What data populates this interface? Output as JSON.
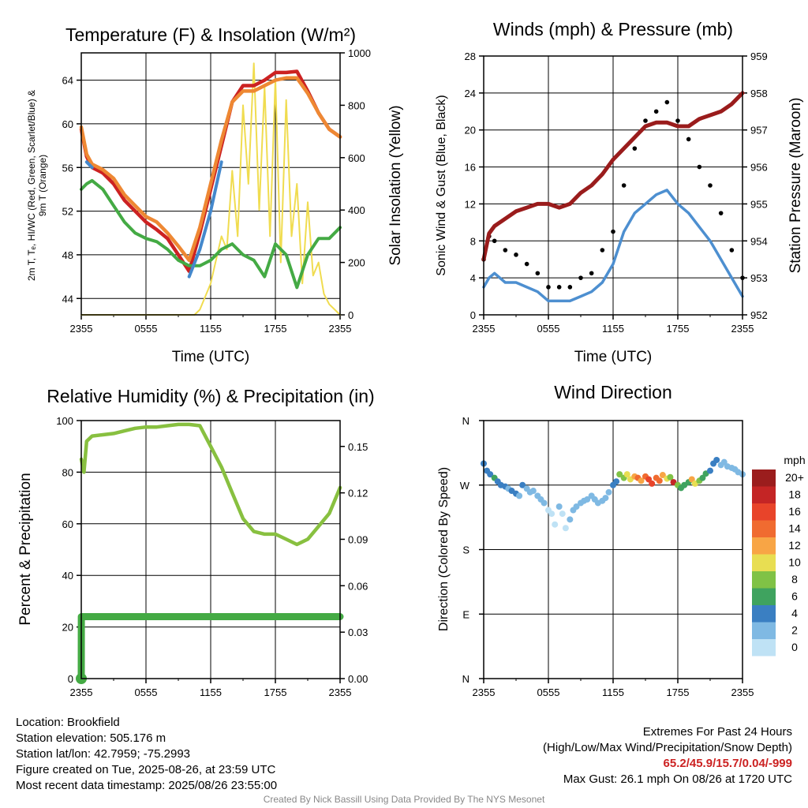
{
  "chart_data": [
    {
      "type": "line",
      "title": "Temperature (F) & Insolation (W/m²)",
      "xlabel": "Time (UTC)",
      "ylabel": "2m T, Tₑ, HI/WC (Red, Green, Scarlet/Blue) & 9m T (Orange)",
      "y2label": "Solar Insolation (Yellow)",
      "x_ticks": [
        "2355",
        "0555",
        "1155",
        "1755",
        "2355"
      ],
      "y_ticks": [
        44,
        48,
        52,
        56,
        60,
        64
      ],
      "y2_ticks": [
        0,
        200,
        400,
        600,
        800,
        1000
      ],
      "ylim": [
        42.5,
        66.5
      ],
      "y2lim": [
        0,
        1000
      ],
      "grid": true,
      "x_hours": [
        0,
        0.5,
        1,
        2,
        3,
        4,
        5,
        6,
        7,
        8,
        9,
        10,
        11,
        12,
        13,
        14,
        15,
        16,
        17,
        18,
        19,
        20,
        21,
        22,
        23,
        24
      ],
      "series": [
        {
          "name": "2m T",
          "color": "#cc2222",
          "values": [
            59.5,
            57,
            56,
            55.5,
            54.5,
            53,
            52,
            51,
            50.3,
            49.5,
            48,
            46.5,
            50,
            54,
            58,
            62,
            63.5,
            63.5,
            64,
            64.7,
            64.7,
            64.8,
            63,
            61,
            59.5,
            58.8
          ]
        },
        {
          "name": "9m T",
          "color": "#ee8833",
          "values": [
            59.7,
            57.2,
            56.3,
            55.8,
            55,
            53.5,
            52.5,
            51.5,
            51,
            50,
            48.8,
            47.5,
            50.5,
            54.5,
            58.5,
            62,
            63,
            63,
            63.5,
            64,
            64.2,
            64.2,
            62.8,
            61,
            59.5,
            58.8
          ]
        },
        {
          "name": "Tₑ",
          "color": "#44aa44",
          "values": [
            54,
            54.5,
            54.8,
            54,
            52.5,
            51,
            50,
            49.5,
            49.2,
            48.5,
            47.5,
            47,
            47,
            47.5,
            48.5,
            49,
            48,
            47.5,
            46,
            49,
            48,
            45,
            48,
            49.5,
            49.5,
            50.5
          ]
        },
        {
          "name": "HI/WC",
          "color": "#4488cc",
          "values": [
            null,
            56.5,
            56,
            null,
            null,
            null,
            null,
            null,
            null,
            null,
            null,
            46,
            48.5,
            52,
            56.5,
            null,
            null,
            null,
            null,
            null,
            null,
            null,
            null,
            null,
            null,
            null
          ]
        }
      ],
      "insolation": {
        "name": "Solar Insolation",
        "color": "#f0dc50",
        "x_hours": [
          0,
          4,
          8,
          9,
          10,
          10.5,
          11,
          12,
          13,
          13.5,
          14,
          14.5,
          15,
          15.5,
          16,
          16.5,
          17,
          17.5,
          18,
          18.5,
          19,
          19.5,
          20,
          20.5,
          21,
          21.5,
          22,
          22.5,
          23,
          23.5,
          24
        ],
        "values": [
          0,
          0,
          0,
          0,
          0,
          0,
          20,
          120,
          300,
          250,
          550,
          300,
          800,
          500,
          960,
          400,
          870,
          300,
          900,
          200,
          820,
          300,
          500,
          120,
          430,
          150,
          200,
          80,
          40,
          20,
          0
        ]
      }
    },
    {
      "type": "line",
      "title": "Winds (mph) & Pressure (mb)",
      "xlabel": "Time (UTC)",
      "ylabel": "Sonic Wind & Gust (Blue, Black)",
      "y2label": "Station Pressure (Maroon)",
      "x_ticks": [
        "2355",
        "0555",
        "1155",
        "1755",
        "2355"
      ],
      "y_ticks": [
        0,
        4,
        8,
        12,
        16,
        20,
        24,
        28
      ],
      "y2_ticks": [
        952,
        953,
        954,
        955,
        956,
        957,
        958,
        959
      ],
      "ylim": [
        0,
        28
      ],
      "y2lim": [
        952,
        959
      ],
      "grid": true,
      "x_hours": [
        0,
        0.5,
        1,
        2,
        3,
        4,
        5,
        6,
        7,
        8,
        9,
        10,
        11,
        12,
        13,
        14,
        15,
        16,
        17,
        18,
        19,
        20,
        21,
        22,
        23,
        24
      ],
      "series": [
        {
          "name": "Sonic Wind",
          "color": "#4d8fd0",
          "values": [
            3,
            4,
            4.5,
            3.5,
            3.5,
            3,
            2.5,
            1.5,
            1.5,
            1.5,
            2,
            2.5,
            3.5,
            5.5,
            9,
            11,
            12,
            13,
            13.5,
            12,
            11,
            9.5,
            8,
            6,
            4,
            2
          ]
        },
        {
          "name": "Gust",
          "color": "#000000",
          "values": [
            6,
            8.5,
            8,
            7,
            6.5,
            5.5,
            4.5,
            3,
            3,
            3,
            4,
            4.5,
            7,
            9,
            14,
            18,
            21,
            22,
            23,
            21,
            19,
            16,
            14,
            11,
            7,
            4
          ]
        },
        {
          "name": "Station Pressure",
          "color": "#9a1c1c",
          "values": [
            953.5,
            954.2,
            954.4,
            954.6,
            954.8,
            954.9,
            955.0,
            955.0,
            954.9,
            955.0,
            955.3,
            955.5,
            955.8,
            956.2,
            956.5,
            956.8,
            957.1,
            957.2,
            957.2,
            957.1,
            957.1,
            957.3,
            957.4,
            957.5,
            957.7,
            958.0
          ]
        }
      ]
    },
    {
      "type": "line",
      "title": "Relative Humidity (%) & Precipitation (in)",
      "ylabel": "Percent & Precipitation",
      "x_ticks": [
        "2355",
        "0555",
        "1155",
        "1755",
        "2355"
      ],
      "y_ticks": [
        0,
        20,
        40,
        60,
        80,
        100
      ],
      "y2_ticks": [
        "0.00",
        "0.03",
        "0.06",
        "0.09",
        "0.12",
        "0.15"
      ],
      "ylim": [
        0,
        100
      ],
      "y2lim": [
        0,
        0.1667
      ],
      "grid": true,
      "x_hours": [
        0,
        0.25,
        0.5,
        1,
        2,
        3,
        4,
        5,
        6,
        7,
        8,
        9,
        10,
        11,
        12,
        13,
        14,
        15,
        16,
        17,
        18,
        19,
        20,
        21,
        22,
        23,
        24
      ],
      "series": [
        {
          "name": "Relative Humidity",
          "color": "#88c040",
          "values": [
            85,
            80,
            92,
            94,
            94.5,
            95,
            96,
            97,
            97.5,
            97.5,
            98,
            98.5,
            98.5,
            98,
            90,
            82,
            72,
            62,
            57,
            56,
            56,
            54,
            52,
            54,
            59,
            64,
            74
          ]
        },
        {
          "name": "Precipitation",
          "color": "#44aa44",
          "x_hours": [
            0,
            0.01,
            24
          ],
          "values": [
            0,
            0.04,
            0.04
          ]
        }
      ]
    },
    {
      "type": "scatter",
      "title": "Wind Direction",
      "ylabel": "Direction (Colored By Speed)",
      "x_ticks": [
        "2355",
        "0555",
        "1155",
        "1755",
        "2355"
      ],
      "y_ticks": [
        "N",
        "E",
        "S",
        "W",
        "N"
      ],
      "ylim": [
        0,
        360
      ],
      "grid": true,
      "x_hours": [
        0,
        0.3,
        0.6,
        1,
        1.3,
        1.6,
        2,
        2.3,
        2.6,
        3,
        3.3,
        3.6,
        4,
        4.3,
        4.6,
        5,
        5.3,
        5.6,
        6,
        6.3,
        6.6,
        7,
        7.3,
        7.6,
        8,
        8.3,
        8.6,
        9,
        9.3,
        9.6,
        10,
        10.3,
        10.6,
        11,
        11.3,
        11.6,
        12,
        12.3,
        12.6,
        13,
        13.3,
        13.6,
        14,
        14.3,
        14.6,
        15,
        15.3,
        15.6,
        16,
        16.3,
        16.6,
        17,
        17.3,
        17.6,
        18,
        18.3,
        18.6,
        19,
        19.3,
        19.6,
        20,
        20.3,
        20.6,
        21,
        21.3,
        21.6,
        22,
        22.3,
        22.6,
        23,
        23.3,
        23.6,
        24
      ],
      "directions": [
        300,
        290,
        285,
        280,
        275,
        270,
        268,
        265,
        262,
        258,
        255,
        270,
        265,
        260,
        262,
        255,
        250,
        245,
        235,
        230,
        215,
        240,
        230,
        210,
        222,
        235,
        240,
        245,
        248,
        250,
        255,
        250,
        245,
        248,
        252,
        260,
        270,
        275,
        285,
        280,
        285,
        278,
        282,
        280,
        276,
        282,
        278,
        272,
        280,
        276,
        284,
        279,
        281,
        274,
        270,
        266,
        270,
        274,
        278,
        272,
        276,
        280,
        286,
        290,
        300,
        305,
        298,
        302,
        296,
        294,
        292,
        288,
        285
      ],
      "speeds": [
        4,
        4,
        5,
        7,
        5,
        4,
        4,
        3,
        4,
        4,
        3,
        4,
        3,
        3,
        3,
        2,
        2,
        2,
        1,
        1,
        1,
        2,
        1,
        1,
        2,
        2,
        2,
        2,
        2,
        3,
        3,
        3,
        3,
        3,
        2,
        3,
        4,
        5,
        8,
        9,
        10,
        11,
        12,
        14,
        13,
        15,
        16,
        16,
        14,
        14,
        12,
        10,
        9,
        18,
        8,
        7,
        6,
        7,
        12,
        10,
        8,
        7,
        6,
        5,
        4,
        4,
        3,
        3,
        3,
        3,
        3,
        2,
        2
      ]
    }
  ],
  "legend": {
    "title": "mph",
    "labels": [
      "20+",
      "18",
      "16",
      "14",
      "12",
      "10",
      "8",
      "6",
      "4",
      "2",
      "0"
    ],
    "colors": [
      "#9b1d1d",
      "#c42525",
      "#e8442a",
      "#f06b30",
      "#f8a545",
      "#e8de52",
      "#80c246",
      "#3fa35f",
      "#3a7fc2",
      "#7fb9e3",
      "#bfe2f5"
    ]
  },
  "info": {
    "location": "Location: Brookfield",
    "elevation": "Station elevation: 505.176 m",
    "latlon": "Station lat/lon: 42.7959; -75.2993",
    "created": "Figure created on Tue, 2025-08-26, at 23:59 UTC",
    "recent": "Most recent data timestamp: 2025/08/26 23:55:00"
  },
  "extremes": {
    "title": "Extremes For Past 24 Hours",
    "subtitle": "(High/Low/Max Wind/Precipitation/Snow Depth)",
    "values": "65.2/45.9/15.7/0.04/-999",
    "gust": "Max Gust: 26.1 mph On 08/26 at 1720 UTC"
  },
  "credit": "Created By Nick Bassill Using Data Provided By The NYS Mesonet"
}
